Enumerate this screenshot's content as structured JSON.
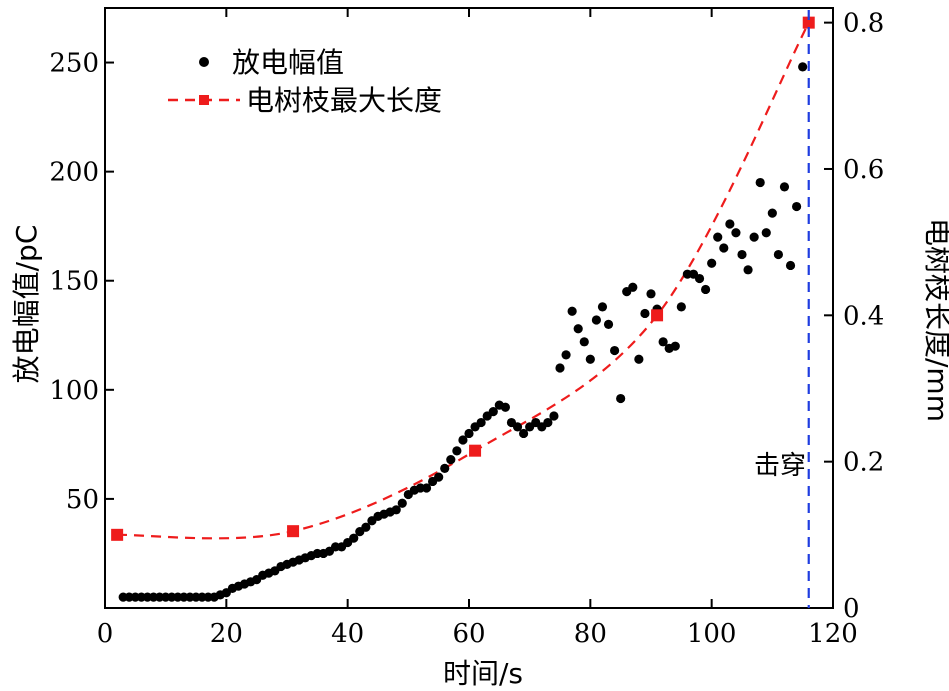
{
  "chart_data": {
    "type": "scatter",
    "xlabel": "时间/s",
    "ylabel_left": "放电幅值/pC",
    "ylabel_right": "电树枝长度/mm",
    "xlim": [
      0,
      120
    ],
    "ylim_left": [
      0,
      275
    ],
    "ylim_right": [
      0,
      0.82
    ],
    "x_ticks": [
      0,
      20,
      40,
      60,
      80,
      100,
      120
    ],
    "y_left_ticks": [
      50,
      100,
      150,
      200,
      250
    ],
    "y_right_ticks": [
      0,
      0.2,
      0.4,
      0.6,
      0.8
    ],
    "legend_position": "top-left",
    "grid": false,
    "colors": {
      "scatter": "#000000",
      "line": "#ee1c1c",
      "breakdown": "#1f3de0"
    },
    "series": [
      {
        "name": "放电幅值",
        "axis": "left",
        "kind": "scatter",
        "x": [
          3,
          4,
          5,
          6,
          7,
          8,
          9,
          10,
          11,
          12,
          13,
          14,
          15,
          16,
          17,
          18,
          19,
          20,
          21,
          22,
          23,
          24,
          25,
          26,
          27,
          28,
          29,
          30,
          31,
          32,
          33,
          34,
          35,
          36,
          37,
          38,
          39,
          40,
          41,
          42,
          43,
          44,
          45,
          46,
          47,
          48,
          49,
          50,
          51,
          52,
          53,
          54,
          55,
          56,
          57,
          58,
          59,
          60,
          61,
          62,
          63,
          64,
          65,
          66,
          67,
          68,
          69,
          70,
          71,
          72,
          73,
          74,
          75,
          76,
          77,
          78,
          79,
          80,
          81,
          82,
          83,
          84,
          85,
          86,
          87,
          88,
          89,
          90,
          91,
          92,
          93,
          94,
          95,
          96,
          97,
          98,
          99,
          100,
          101,
          102,
          103,
          104,
          105,
          106,
          107,
          108,
          109,
          110,
          111,
          112,
          113,
          114,
          115
        ],
        "y": [
          5,
          5,
          5,
          5,
          5,
          5,
          5,
          5,
          5,
          5,
          5,
          5,
          5,
          5,
          5,
          5,
          6,
          7,
          9,
          10,
          11,
          12,
          13,
          15,
          16,
          17,
          19,
          20,
          21,
          22,
          23,
          24,
          25,
          25,
          26,
          28,
          28,
          30,
          32,
          35,
          37,
          40,
          42,
          43,
          44,
          45,
          48,
          52,
          54,
          55,
          55,
          58,
          60,
          64,
          68,
          72,
          77,
          80,
          83,
          85,
          88,
          90,
          93,
          92,
          85,
          83,
          80,
          83,
          85,
          83,
          85,
          88,
          110,
          116,
          136,
          128,
          122,
          114,
          132,
          138,
          130,
          118,
          96,
          145,
          147,
          114,
          135,
          144,
          137,
          122,
          119,
          120,
          138,
          153,
          153,
          151,
          146,
          158,
          170,
          165,
          176,
          172,
          162,
          155,
          170,
          195,
          172,
          181,
          162,
          193,
          157,
          184,
          248
        ]
      },
      {
        "name": "电树枝最大长度",
        "axis": "right",
        "kind": "line",
        "x": [
          2,
          31,
          61,
          91,
          116
        ],
        "y": [
          0.1,
          0.105,
          0.215,
          0.4,
          0.8
        ]
      }
    ],
    "breakdown": {
      "x": 116,
      "label": "击穿"
    }
  }
}
